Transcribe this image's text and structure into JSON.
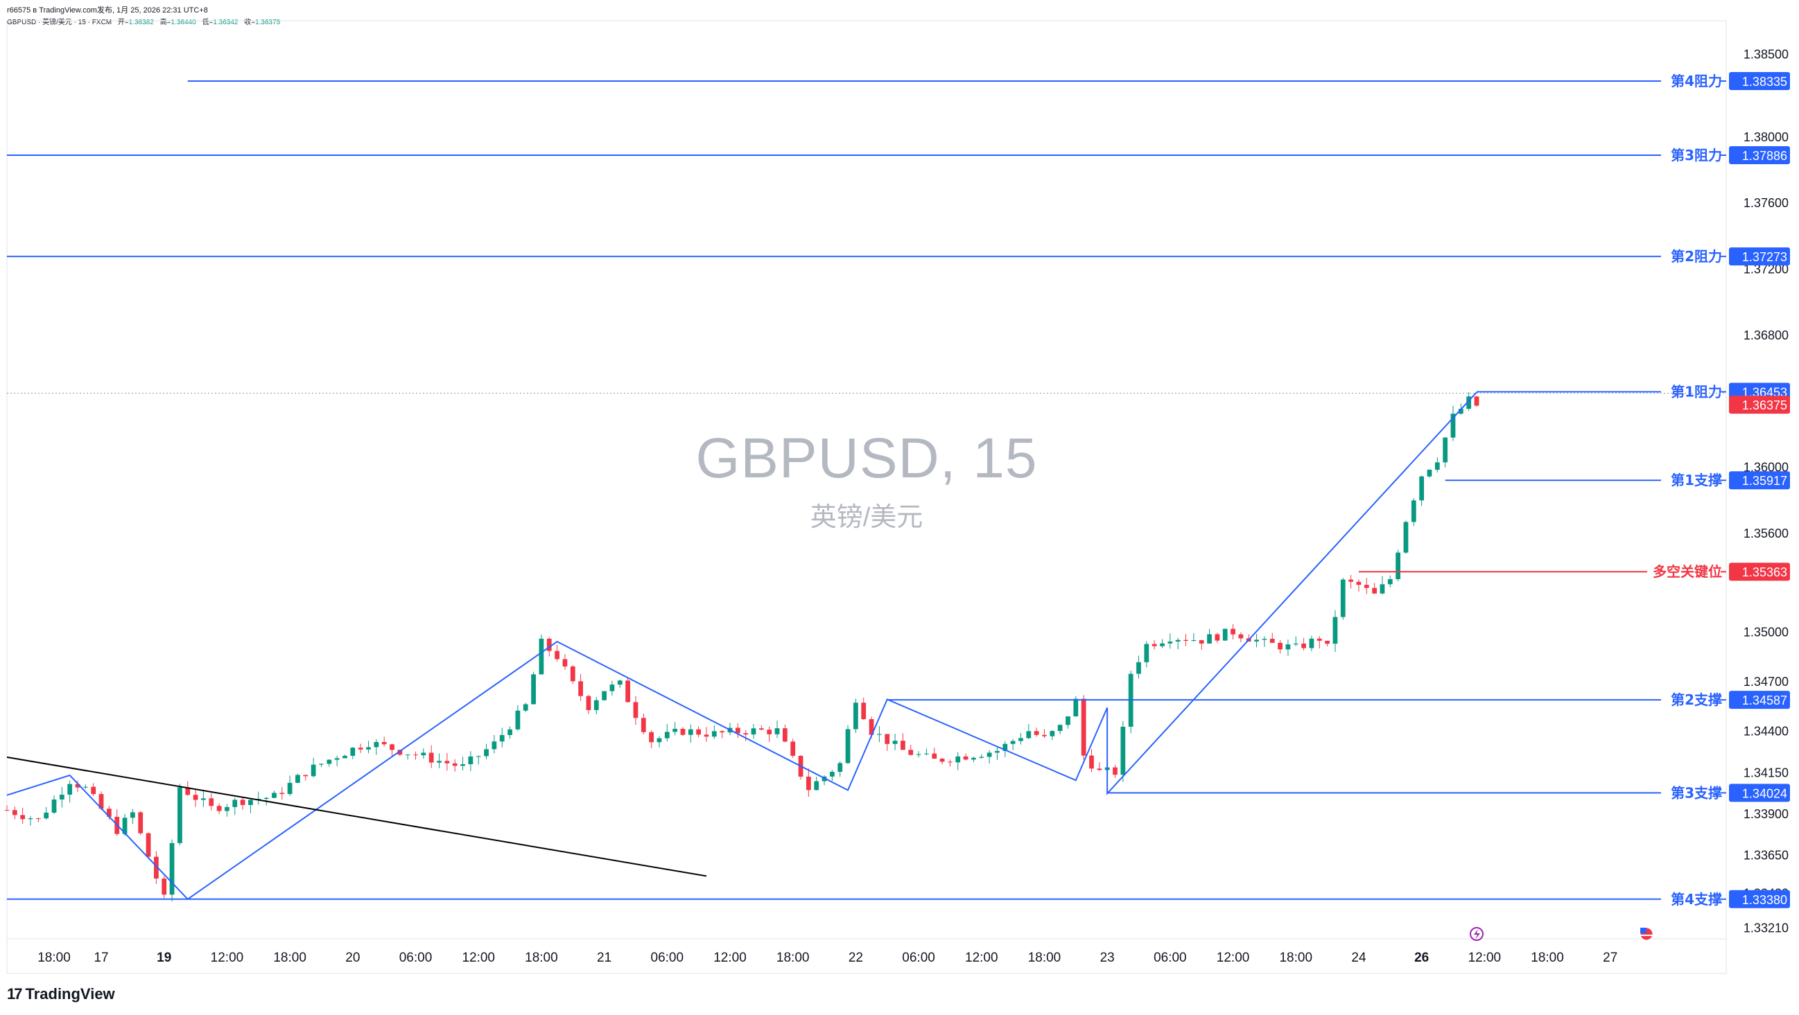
{
  "header": {
    "publisher": "r66575 в TradingView.com发布, 1月 25, 2026 22:31 UTC+8",
    "symbol_line": "GBPUSD · 英镑/美元 · 15 · FXCM",
    "ohlc": [
      {
        "label": "开=",
        "value": "1.36382"
      },
      {
        "label": "高=",
        "value": "1.36440"
      },
      {
        "label": "低=",
        "value": "1.36342"
      },
      {
        "label": "收=",
        "value": "1.36375"
      }
    ]
  },
  "watermark": {
    "title": "GBPUSD, 15",
    "subtitle": "英镑/美元"
  },
  "branding": {
    "logo_text": "TradingView",
    "logo_mark": "17"
  },
  "colors": {
    "blue": "#2962ff",
    "red": "#f23645",
    "up": "#089981",
    "down": "#f23645",
    "trend": "#000000",
    "axis_text": "#131722"
  },
  "chart_data": {
    "type": "candlestick",
    "symbol": "GBPUSD",
    "interval": "15",
    "ylim": [
      1.3314,
      1.387
    ],
    "y_ticks": [
      "1.38500",
      "1.38000",
      "1.37600",
      "1.37200",
      "1.36800",
      "1.36000",
      "1.35600",
      "1.35000",
      "1.34700",
      "1.34400",
      "1.34150",
      "1.33900",
      "1.33650",
      "1.33420",
      "1.33210"
    ],
    "x_ticks": [
      "18:00",
      "17",
      "19",
      "12:00",
      "18:00",
      "20",
      "06:00",
      "12:00",
      "18:00",
      "21",
      "06:00",
      "12:00",
      "18:00",
      "22",
      "06:00",
      "12:00",
      "18:00",
      "23",
      "06:00",
      "12:00",
      "18:00",
      "24",
      "26",
      "12:00",
      "18:00",
      "27"
    ],
    "x_tick_bold": [
      false,
      false,
      true,
      false,
      false,
      false,
      false,
      false,
      false,
      false,
      false,
      false,
      false,
      false,
      false,
      false,
      false,
      false,
      false,
      false,
      false,
      false,
      true,
      false,
      false,
      false
    ],
    "x_tick_index": [
      6,
      12,
      20,
      28,
      36,
      44,
      52,
      60,
      68,
      76,
      84,
      92,
      100,
      108,
      116,
      124,
      132,
      140,
      148,
      156,
      164,
      172,
      180,
      188,
      196,
      204
    ],
    "close_path": [
      [
        0,
        1.3392
      ],
      [
        4,
        1.3386
      ],
      [
        8,
        1.341
      ],
      [
        10,
        1.3405
      ],
      [
        14,
        1.338
      ],
      [
        16,
        1.339
      ],
      [
        20,
        1.3338
      ],
      [
        22,
        1.3406
      ],
      [
        26,
        1.3393
      ],
      [
        30,
        1.3398
      ],
      [
        34,
        1.34
      ],
      [
        38,
        1.3415
      ],
      [
        42,
        1.3425
      ],
      [
        46,
        1.3433
      ],
      [
        50,
        1.3428
      ],
      [
        54,
        1.3423
      ],
      [
        58,
        1.3418
      ],
      [
        62,
        1.3432
      ],
      [
        66,
        1.3455
      ],
      [
        68,
        1.3493
      ],
      [
        70,
        1.3485
      ],
      [
        72,
        1.3468
      ],
      [
        74,
        1.3455
      ],
      [
        76,
        1.3465
      ],
      [
        78,
        1.3468
      ],
      [
        80,
        1.345
      ],
      [
        82,
        1.3434
      ],
      [
        86,
        1.344
      ],
      [
        90,
        1.3438
      ],
      [
        94,
        1.344
      ],
      [
        98,
        1.344
      ],
      [
        102,
        1.3405
      ],
      [
        106,
        1.342
      ],
      [
        108,
        1.346
      ],
      [
        110,
        1.344
      ],
      [
        114,
        1.3428
      ],
      [
        118,
        1.3422
      ],
      [
        122,
        1.3425
      ],
      [
        126,
        1.3428
      ],
      [
        130,
        1.344
      ],
      [
        132,
        1.3435
      ],
      [
        134,
        1.3442
      ],
      [
        136,
        1.3458
      ],
      [
        137,
        1.3425
      ],
      [
        139,
        1.3415
      ],
      [
        141,
        1.3415
      ],
      [
        142,
        1.344
      ],
      [
        143,
        1.3475
      ],
      [
        145,
        1.3492
      ],
      [
        148,
        1.3497
      ],
      [
        152,
        1.3495
      ],
      [
        156,
        1.35
      ],
      [
        160,
        1.3493
      ],
      [
        164,
        1.349
      ],
      [
        167,
        1.3496
      ],
      [
        168,
        1.349
      ],
      [
        170,
        1.353
      ],
      [
        172,
        1.3528
      ],
      [
        174,
        1.3522
      ],
      [
        176,
        1.3532
      ],
      [
        178,
        1.3568
      ],
      [
        180,
        1.3595
      ],
      [
        182,
        1.3605
      ],
      [
        184,
        1.363
      ],
      [
        186,
        1.364
      ],
      [
        187,
        1.3637
      ]
    ],
    "candle_count": 188,
    "levels": [
      {
        "label": "第4阻力",
        "value": "1.38335",
        "color": "#2962ff",
        "start_index": 23
      },
      {
        "label": "第3阻力",
        "value": "1.37886",
        "color": "#2962ff",
        "start_index": 0
      },
      {
        "label": "第2阻力",
        "value": "1.37273",
        "color": "#2962ff",
        "start_index": 0
      },
      {
        "label": "第1阻力",
        "value": "1.36453",
        "color": "#2962ff",
        "start_index": 187
      },
      {
        "label": "第1支撑",
        "value": "1.35917",
        "color": "#2962ff",
        "start_index": 183
      },
      {
        "label": "多空关键位",
        "value": "1.35363",
        "color": "#f23645",
        "start_index": 172
      },
      {
        "label": "第2支撑",
        "value": "1.34587",
        "color": "#2962ff",
        "start_index": 112
      },
      {
        "label": "第3支撑",
        "value": "1.34024",
        "color": "#2962ff",
        "start_index": 140
      },
      {
        "label": "第4支撑",
        "value": "1.33380",
        "color": "#2962ff",
        "start_index": 0
      }
    ],
    "current_price": {
      "value": "1.36375",
      "color": "#f23645"
    },
    "zigzag": [
      [
        0,
        1.3401
      ],
      [
        8,
        1.3413
      ],
      [
        23,
        1.3338
      ],
      [
        70,
        1.3494
      ],
      [
        107,
        1.3404
      ],
      [
        112,
        1.3459
      ],
      [
        136,
        1.341
      ],
      [
        140,
        1.3454
      ],
      [
        140,
        1.3402
      ],
      [
        187,
        1.3645
      ]
    ],
    "trendline": [
      [
        0,
        1.3424
      ],
      [
        89,
        1.3352
      ]
    ]
  }
}
